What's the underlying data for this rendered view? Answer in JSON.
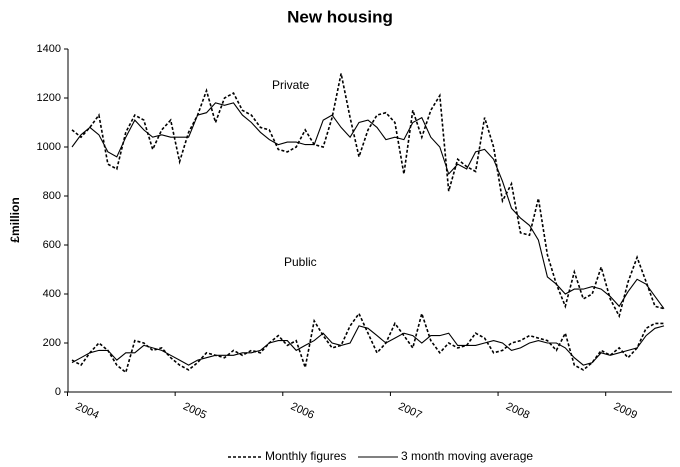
{
  "chart_data": {
    "type": "line",
    "title": "New housing",
    "y_label": "£million",
    "ylim": [
      0,
      1400
    ],
    "yticks": [
      0,
      200,
      400,
      600,
      800,
      1000,
      1200,
      1400
    ],
    "categories": [
      "2004",
      null,
      null,
      null,
      null,
      null,
      null,
      null,
      null,
      null,
      null,
      null,
      "2005",
      null,
      null,
      null,
      null,
      null,
      null,
      null,
      null,
      null,
      null,
      null,
      "2006",
      null,
      null,
      null,
      null,
      null,
      null,
      null,
      null,
      null,
      null,
      null,
      "2007",
      null,
      null,
      null,
      null,
      null,
      null,
      null,
      null,
      null,
      null,
      null,
      "2008",
      null,
      null,
      null,
      null,
      null,
      null,
      null,
      null,
      null,
      null,
      null,
      "2009",
      null,
      null,
      null,
      null,
      null,
      null
    ],
    "series": [
      {
        "name": "Monthly figures",
        "dash": "dotted",
        "color": "#000000"
      },
      {
        "name": "3 month moving average",
        "dash": "solid",
        "color": "#000000"
      }
    ],
    "groups": [
      {
        "label": "Private",
        "values": [
          [
            1070,
            1040,
            1080,
            1130,
            930,
            910,
            1060,
            1130,
            1110,
            990,
            1070,
            1110,
            940,
            1060,
            1130,
            1230,
            1100,
            1200,
            1220,
            1150,
            1130,
            1080,
            1070,
            990,
            980,
            1000,
            1070,
            1010,
            1000,
            1120,
            1300,
            1120,
            960,
            1070,
            1130,
            1140,
            1100,
            890,
            1150,
            1040,
            1150,
            1210,
            820,
            950,
            920,
            900,
            1120,
            1000,
            780,
            850,
            650,
            640,
            790,
            560,
            440,
            350,
            490,
            380,
            400,
            510,
            380,
            310,
            450,
            550,
            450,
            350,
            340
          ],
          [
            1000,
            1050,
            1080,
            1050,
            980,
            960,
            1040,
            1110,
            1070,
            1040,
            1050,
            1040,
            1040,
            1040,
            1130,
            1140,
            1180,
            1170,
            1180,
            1130,
            1100,
            1060,
            1030,
            1010,
            1020,
            1020,
            1010,
            1010,
            1110,
            1130,
            1080,
            1040,
            1100,
            1110,
            1080,
            1030,
            1040,
            1030,
            1100,
            1120,
            1040,
            1000,
            890,
            930,
            910,
            980,
            990,
            950,
            860,
            750,
            710,
            680,
            620,
            470,
            440,
            400,
            420,
            420,
            430,
            420,
            390,
            350,
            410,
            460,
            440,
            390,
            340
          ]
        ]
      },
      {
        "label": "Public",
        "values": [
          [
            130,
            110,
            160,
            200,
            170,
            110,
            80,
            210,
            200,
            170,
            180,
            140,
            110,
            90,
            120,
            160,
            150,
            140,
            170,
            150,
            170,
            160,
            200,
            230,
            190,
            210,
            100,
            290,
            230,
            180,
            190,
            270,
            320,
            240,
            160,
            200,
            280,
            230,
            180,
            320,
            210,
            160,
            200,
            180,
            190,
            240,
            220,
            160,
            170,
            200,
            210,
            230,
            220,
            210,
            170,
            240,
            110,
            90,
            120,
            170,
            150,
            180,
            140,
            180,
            260,
            280,
            280
          ],
          [
            120,
            140,
            160,
            170,
            170,
            130,
            160,
            160,
            190,
            180,
            170,
            150,
            130,
            110,
            130,
            140,
            150,
            150,
            150,
            160,
            160,
            170,
            200,
            210,
            210,
            170,
            190,
            210,
            240,
            200,
            190,
            200,
            270,
            260,
            230,
            200,
            220,
            240,
            230,
            200,
            230,
            230,
            240,
            190,
            190,
            190,
            200,
            210,
            200,
            170,
            180,
            200,
            210,
            200,
            200,
            180,
            140,
            110,
            120,
            160,
            150,
            160,
            170,
            180,
            230,
            260,
            270
          ]
        ]
      }
    ]
  }
}
